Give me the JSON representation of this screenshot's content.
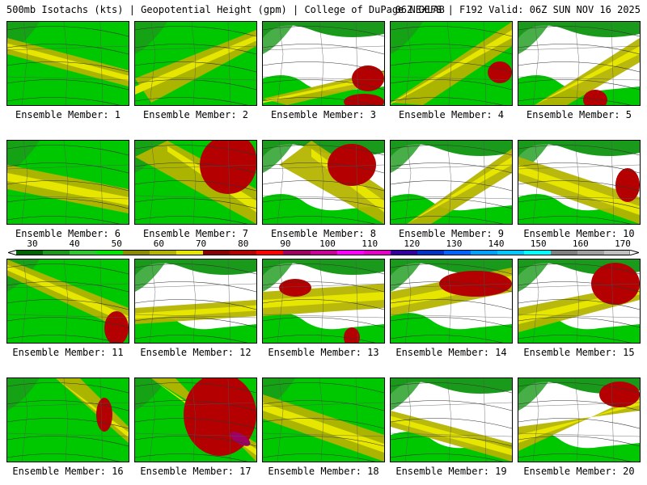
{
  "header": {
    "left_title": "500mb Isotachs (kts) | Geopotential Height (gpm) | College of DuPage NEXLAB",
    "right_title": "06Z GEFS | F192 Valid: 06Z SUN NOV 16 2025"
  },
  "legend": {
    "labels": [
      "30",
      "40",
      "50",
      "60",
      "70",
      "80",
      "90",
      "100",
      "110",
      "120",
      "130",
      "140",
      "150",
      "160",
      "170"
    ],
    "colors": [
      "#006400",
      "#1a9a1a",
      "#2dc82d",
      "#00e600",
      "#8c8c00",
      "#b4b400",
      "#e6e600",
      "#8b0000",
      "#b40000",
      "#ff0000",
      "#a00064",
      "#c80096",
      "#ff00ff",
      "#e600c8",
      "#3200a0",
      "#0032c8",
      "#0064ff",
      "#00a0ff",
      "#00c8ff",
      "#00ffff",
      "#808080",
      "#a0a0a0",
      "#c0c0c0"
    ]
  },
  "members": [
    {
      "label": "Ensemble Member: 1"
    },
    {
      "label": "Ensemble Member: 2"
    },
    {
      "label": "Ensemble Member: 3"
    },
    {
      "label": "Ensemble Member: 4"
    },
    {
      "label": "Ensemble Member: 5"
    },
    {
      "label": "Ensemble Member: 6"
    },
    {
      "label": "Ensemble Member: 7"
    },
    {
      "label": "Ensemble Member: 8"
    },
    {
      "label": "Ensemble Member: 9"
    },
    {
      "label": "Ensemble Member: 10"
    },
    {
      "label": "Ensemble Member: 11"
    },
    {
      "label": "Ensemble Member: 12"
    },
    {
      "label": "Ensemble Member: 13"
    },
    {
      "label": "Ensemble Member: 14"
    },
    {
      "label": "Ensemble Member: 15"
    },
    {
      "label": "Ensemble Member: 16"
    },
    {
      "label": "Ensemble Member: 17"
    },
    {
      "label": "Ensemble Member: 18"
    },
    {
      "label": "Ensemble Member: 19"
    },
    {
      "label": "Ensemble Member: 20"
    }
  ]
}
